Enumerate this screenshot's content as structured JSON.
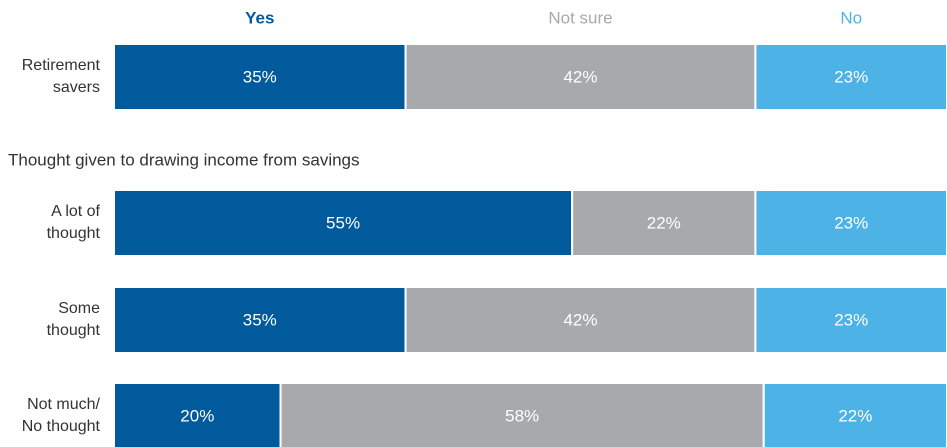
{
  "chart_data": {
    "type": "stacked-bar-horizontal",
    "annotation": "Thought given to drawing income from savings",
    "categories": [
      [
        "Retirement",
        "savers"
      ],
      [
        "A lot of",
        "thought"
      ],
      [
        "Some",
        "thought"
      ],
      [
        "Not much/",
        "No thought"
      ]
    ],
    "xlim": [
      0,
      100
    ],
    "series": [
      {
        "name": "Yes",
        "color": "#005a9c",
        "values": [
          35,
          55,
          35,
          20
        ],
        "value_labels": [
          "35%",
          "55%",
          "35%",
          "20%"
        ]
      },
      {
        "name": "Not sure",
        "color": "#a7a9ac",
        "values": [
          42,
          22,
          42,
          58
        ],
        "value_labels": [
          "42%",
          "22%",
          "42%",
          "58%"
        ]
      },
      {
        "name": "No",
        "color": "#4db3e6",
        "values": [
          23,
          23,
          23,
          22
        ],
        "value_labels": [
          "23%",
          "23%",
          "23%",
          "22%"
        ]
      }
    ]
  }
}
